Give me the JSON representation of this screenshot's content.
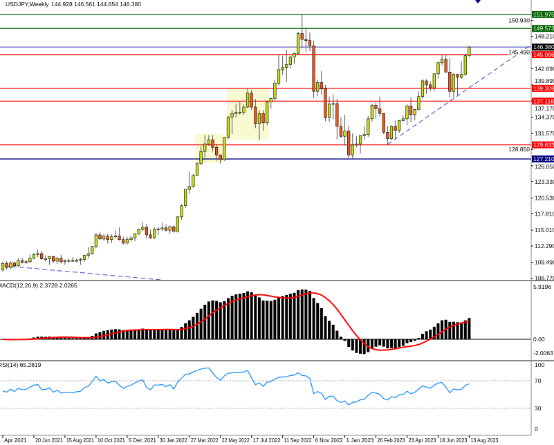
{
  "title": {
    "symbol_timeframe": "USDJPY,Weekly",
    "ohlc": "144.928 146.561 144.654 146.380"
  },
  "colors": {
    "bull": "#c8dc1a",
    "bear": "#ee5a1e",
    "outline": "#000000",
    "macd_signal": "#ff0000",
    "rsi_line": "#1e90ff",
    "zone": "#fafad2",
    "trendline": "#4040c0"
  },
  "chart_data": {
    "type": "candlestick",
    "title": "USDJPY,Weekly",
    "ylim": [
      106.0,
      153.0
    ],
    "y_ticks": [
      "150.930",
      "148.210",
      "145.490",
      "142.690",
      "139.890",
      "137.170",
      "134.370",
      "131.570",
      "128.850",
      "126.050",
      "123.330",
      "120.530",
      "117.810",
      "115.010",
      "112.290",
      "109.490",
      "106.770"
    ],
    "x_ticks": [
      {
        "label": "Apr 2021",
        "bar": 0
      },
      {
        "label": "20 Jun 2021",
        "bar": 8
      },
      {
        "label": "15 Aug 2021",
        "bar": 16
      },
      {
        "label": "10 Oct 2021",
        "bar": 24
      },
      {
        "label": "5 Dec 2021",
        "bar": 32
      },
      {
        "label": "30 Jan 2022",
        "bar": 40
      },
      {
        "label": "27 Mar 2022",
        "bar": 48
      },
      {
        "label": "22 May 2022",
        "bar": 56
      },
      {
        "label": "17 Jul 2022",
        "bar": 64
      },
      {
        "label": "11 Sep 2022",
        "bar": 72
      },
      {
        "label": "6 Nov 2022",
        "bar": 80
      },
      {
        "label": "1 Jan 2023",
        "bar": 88
      },
      {
        "label": "26 Feb 2023",
        "bar": 96
      },
      {
        "label": "23 Apr 2023",
        "bar": 104
      },
      {
        "label": "18 Jun 2023",
        "bar": 112
      },
      {
        "label": "13 Aug 2023",
        "bar": 120
      }
    ],
    "candles": [
      [
        108.2,
        109.6,
        107.9,
        109.3
      ],
      [
        109.3,
        109.7,
        108.3,
        108.6
      ],
      [
        108.6,
        109.7,
        108.4,
        109.4
      ],
      [
        109.4,
        109.6,
        108.6,
        108.9
      ],
      [
        108.9,
        110.2,
        108.7,
        109.8
      ],
      [
        109.8,
        110.3,
        109.3,
        109.5
      ],
      [
        109.5,
        109.9,
        109.2,
        109.6
      ],
      [
        109.6,
        110.8,
        109.4,
        110.2
      ],
      [
        110.2,
        111.1,
        110.0,
        110.8
      ],
      [
        110.8,
        111.7,
        110.4,
        111.0
      ],
      [
        111.0,
        111.5,
        109.9,
        110.1
      ],
      [
        110.1,
        110.7,
        109.6,
        110.1
      ],
      [
        110.1,
        110.6,
        109.1,
        110.5
      ],
      [
        110.5,
        110.6,
        109.4,
        109.7
      ],
      [
        109.7,
        110.4,
        109.2,
        110.2
      ],
      [
        110.2,
        110.8,
        109.3,
        109.6
      ],
      [
        109.6,
        110.0,
        109.1,
        109.8
      ],
      [
        109.8,
        110.2,
        109.4,
        109.8
      ],
      [
        109.8,
        110.4,
        109.6,
        109.7
      ],
      [
        109.7,
        110.1,
        109.5,
        109.9
      ],
      [
        109.9,
        110.3,
        109.1,
        110.0
      ],
      [
        110.0,
        110.8,
        109.6,
        110.7
      ],
      [
        110.7,
        112.1,
        110.2,
        111.0
      ],
      [
        111.0,
        112.3,
        110.8,
        112.2
      ],
      [
        112.2,
        114.5,
        111.9,
        114.2
      ],
      [
        114.2,
        114.7,
        113.4,
        113.5
      ],
      [
        113.5,
        114.3,
        113.2,
        114.0
      ],
      [
        114.0,
        114.4,
        112.7,
        113.4
      ],
      [
        113.4,
        114.3,
        112.8,
        113.9
      ],
      [
        113.9,
        115.0,
        113.6,
        114.0
      ],
      [
        114.0,
        115.5,
        113.2,
        113.4
      ],
      [
        113.4,
        113.9,
        112.5,
        112.8
      ],
      [
        112.8,
        113.9,
        112.5,
        113.4
      ],
      [
        113.4,
        114.0,
        113.0,
        113.7
      ],
      [
        113.7,
        114.5,
        113.1,
        114.4
      ],
      [
        114.4,
        115.3,
        114.2,
        115.1
      ],
      [
        115.1,
        116.4,
        114.8,
        115.5
      ],
      [
        115.5,
        116.1,
        113.5,
        114.2
      ],
      [
        114.2,
        115.1,
        113.5,
        113.7
      ],
      [
        113.7,
        115.5,
        113.5,
        115.2
      ],
      [
        115.2,
        115.6,
        114.2,
        115.2
      ],
      [
        115.2,
        116.3,
        114.9,
        115.4
      ],
      [
        115.4,
        116.0,
        114.8,
        115.0
      ],
      [
        115.0,
        115.8,
        114.4,
        115.6
      ],
      [
        115.6,
        115.8,
        114.6,
        114.8
      ],
      [
        114.8,
        117.4,
        114.6,
        117.3
      ],
      [
        117.3,
        119.4,
        116.8,
        119.2
      ],
      [
        119.2,
        122.0,
        118.8,
        122.0
      ],
      [
        122.0,
        125.1,
        121.2,
        122.5
      ],
      [
        122.5,
        124.7,
        122.3,
        124.4
      ],
      [
        124.4,
        126.7,
        124.3,
        126.4
      ],
      [
        126.4,
        129.4,
        126.2,
        128.5
      ],
      [
        128.5,
        131.3,
        127.0,
        129.8
      ],
      [
        129.8,
        131.3,
        129.5,
        130.5
      ],
      [
        130.5,
        131.3,
        128.5,
        129.2
      ],
      [
        129.2,
        129.8,
        126.9,
        127.9
      ],
      [
        127.9,
        128.0,
        126.4,
        127.1
      ],
      [
        127.1,
        131.0,
        126.9,
        130.9
      ],
      [
        130.9,
        134.6,
        130.6,
        134.4
      ],
      [
        134.4,
        135.6,
        131.5,
        135.0
      ],
      [
        135.0,
        136.7,
        134.3,
        135.2
      ],
      [
        135.2,
        137.0,
        134.8,
        135.2
      ],
      [
        135.2,
        136.6,
        134.8,
        136.1
      ],
      [
        136.1,
        139.4,
        135.9,
        138.5
      ],
      [
        138.5,
        139.0,
        135.6,
        136.1
      ],
      [
        136.1,
        137.5,
        132.5,
        133.3
      ],
      [
        133.3,
        135.6,
        130.4,
        135.0
      ],
      [
        135.0,
        135.6,
        132.0,
        133.4
      ],
      [
        133.4,
        137.0,
        133.0,
        137.0
      ],
      [
        137.0,
        137.7,
        135.8,
        137.6
      ],
      [
        137.6,
        140.8,
        137.2,
        140.2
      ],
      [
        140.2,
        145.0,
        139.8,
        142.5
      ],
      [
        142.5,
        144.9,
        141.6,
        142.9
      ],
      [
        142.9,
        145.9,
        140.4,
        143.4
      ],
      [
        143.4,
        144.9,
        142.7,
        144.7
      ],
      [
        144.7,
        145.4,
        143.5,
        145.3
      ],
      [
        145.3,
        149.0,
        145.0,
        148.7
      ],
      [
        148.7,
        151.9,
        146.2,
        147.7
      ],
      [
        147.7,
        149.7,
        145.5,
        147.5
      ],
      [
        147.5,
        148.9,
        145.7,
        146.6
      ],
      [
        146.6,
        147.5,
        137.7,
        138.8
      ],
      [
        138.8,
        140.8,
        138.0,
        140.3
      ],
      [
        140.3,
        142.3,
        138.2,
        139.2
      ],
      [
        139.2,
        139.9,
        133.7,
        134.3
      ],
      [
        134.3,
        137.9,
        133.6,
        136.6
      ],
      [
        136.6,
        138.2,
        134.0,
        136.7
      ],
      [
        136.7,
        137.5,
        130.6,
        132.8
      ],
      [
        132.8,
        134.4,
        130.8,
        131.1
      ],
      [
        131.1,
        134.8,
        129.5,
        132.0
      ],
      [
        132.0,
        132.9,
        127.2,
        127.9
      ],
      [
        127.9,
        131.6,
        127.2,
        129.6
      ],
      [
        129.6,
        131.1,
        129.2,
        129.8
      ],
      [
        129.8,
        131.3,
        128.1,
        131.2
      ],
      [
        131.2,
        132.9,
        130.5,
        131.4
      ],
      [
        131.4,
        134.6,
        131.0,
        134.1
      ],
      [
        134.1,
        136.6,
        133.6,
        136.4
      ],
      [
        136.4,
        136.9,
        134.1,
        135.8
      ],
      [
        135.8,
        137.9,
        134.5,
        135.0
      ],
      [
        135.0,
        135.1,
        131.5,
        131.8
      ],
      [
        131.8,
        132.9,
        129.6,
        130.7
      ],
      [
        130.7,
        133.0,
        130.4,
        132.8
      ],
      [
        132.8,
        133.8,
        130.6,
        132.1
      ],
      [
        132.1,
        133.9,
        131.7,
        133.8
      ],
      [
        133.8,
        134.7,
        133.6,
        134.1
      ],
      [
        134.1,
        136.6,
        133.0,
        136.3
      ],
      [
        136.3,
        137.8,
        133.5,
        134.8
      ],
      [
        134.8,
        135.8,
        133.8,
        135.7
      ],
      [
        135.7,
        138.8,
        135.5,
        137.9
      ],
      [
        137.9,
        140.9,
        137.6,
        140.6
      ],
      [
        140.6,
        140.9,
        138.4,
        139.9
      ],
      [
        139.9,
        140.5,
        138.8,
        139.4
      ],
      [
        139.4,
        141.9,
        138.8,
        141.8
      ],
      [
        141.8,
        143.9,
        141.0,
        143.7
      ],
      [
        143.7,
        145.0,
        143.3,
        144.3
      ],
      [
        144.3,
        145.0,
        142.0,
        142.1
      ],
      [
        142.1,
        144.5,
        137.7,
        138.8
      ],
      [
        138.8,
        141.9,
        137.7,
        141.7
      ],
      [
        141.7,
        141.8,
        138.1,
        141.2
      ],
      [
        141.2,
        143.9,
        140.9,
        141.7
      ],
      [
        141.7,
        145.2,
        141.5,
        144.9
      ],
      [
        144.928,
        146.561,
        144.654,
        146.38
      ]
    ],
    "levels": [
      {
        "price": 151.975,
        "label": "151.975",
        "color": "#006400",
        "label_bg": "#006400"
      },
      {
        "price": 149.573,
        "label": "149.573",
        "color": "#006400",
        "label_bg": "#006400"
      },
      {
        "price": 146.38,
        "label": "146.380",
        "color": "#6060c0",
        "label_bg": "#000000"
      },
      {
        "price": 145.086,
        "label": "145.086",
        "color": "#ff0000",
        "label_bg": "#ff0000"
      },
      {
        "price": 139.309,
        "label": "139.309",
        "color": "#ff0000",
        "label_bg": "#ff0000"
      },
      {
        "price": 137.118,
        "label": "137.118",
        "color": "#ff0000",
        "label_bg": "#ff0000"
      },
      {
        "price": 129.633,
        "label": "129.633",
        "color": "#ff0000",
        "label_bg": "#ff0000"
      },
      {
        "price": 127.21,
        "label": "127.210",
        "color": "#000080",
        "label_bg": "#000080"
      }
    ],
    "zones": [
      {
        "bar_from": 49.5,
        "bar_to": 56.6,
        "price_top": 131.5,
        "price_bottom": 126.5
      },
      {
        "bar_from": 57.7,
        "bar_to": 68.5,
        "price_top": 139.2,
        "price_bottom": 130.5
      }
    ],
    "trendlines": [
      {
        "from": {
          "bar": 99,
          "price": 129.7
        },
        "to": {
          "bar": 136,
          "price": 146.8
        }
      },
      {
        "from": {
          "bar": 0.4,
          "price": 108.9
        },
        "to": {
          "bar": 40.6,
          "price": 106.5
        }
      }
    ]
  },
  "macd": {
    "label": "MACD(12,26,9) 2.3728 2.0265",
    "fast": 12,
    "slow": 26,
    "signal": 9,
    "axis_ticks": [
      {
        "label": "5.9196",
        "value": 5.9196
      },
      {
        "label": "0.00",
        "value": 0
      },
      {
        "label": "-2.0063",
        "value": -2.0063
      }
    ]
  },
  "rsi": {
    "label": "RSI(14) 65.2819",
    "period": 14,
    "levels": [
      70,
      30
    ],
    "axis_ticks": [
      "100",
      "70",
      "30",
      "0"
    ]
  }
}
